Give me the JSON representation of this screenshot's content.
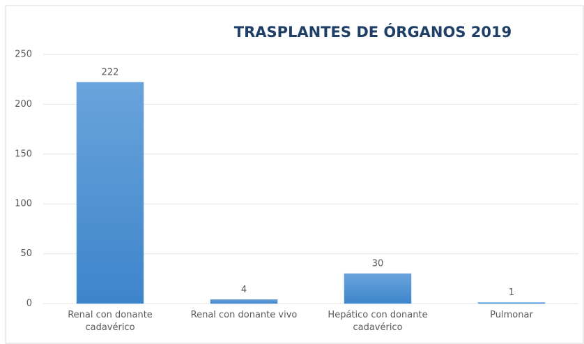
{
  "chart_data": {
    "type": "bar",
    "title": "TRASPLANTES DE ÓRGANOS 2019",
    "categories": [
      "Renal con donante cadavérico",
      "Renal con donante vivo",
      "Hepático con donante cadavérico",
      "Pulmonar"
    ],
    "values": [
      222,
      4,
      30,
      1
    ],
    "color": "#5b9bd5",
    "ylim": [
      0,
      250
    ],
    "yticks": [
      0,
      50,
      100,
      150,
      200,
      250
    ],
    "grid": true
  }
}
